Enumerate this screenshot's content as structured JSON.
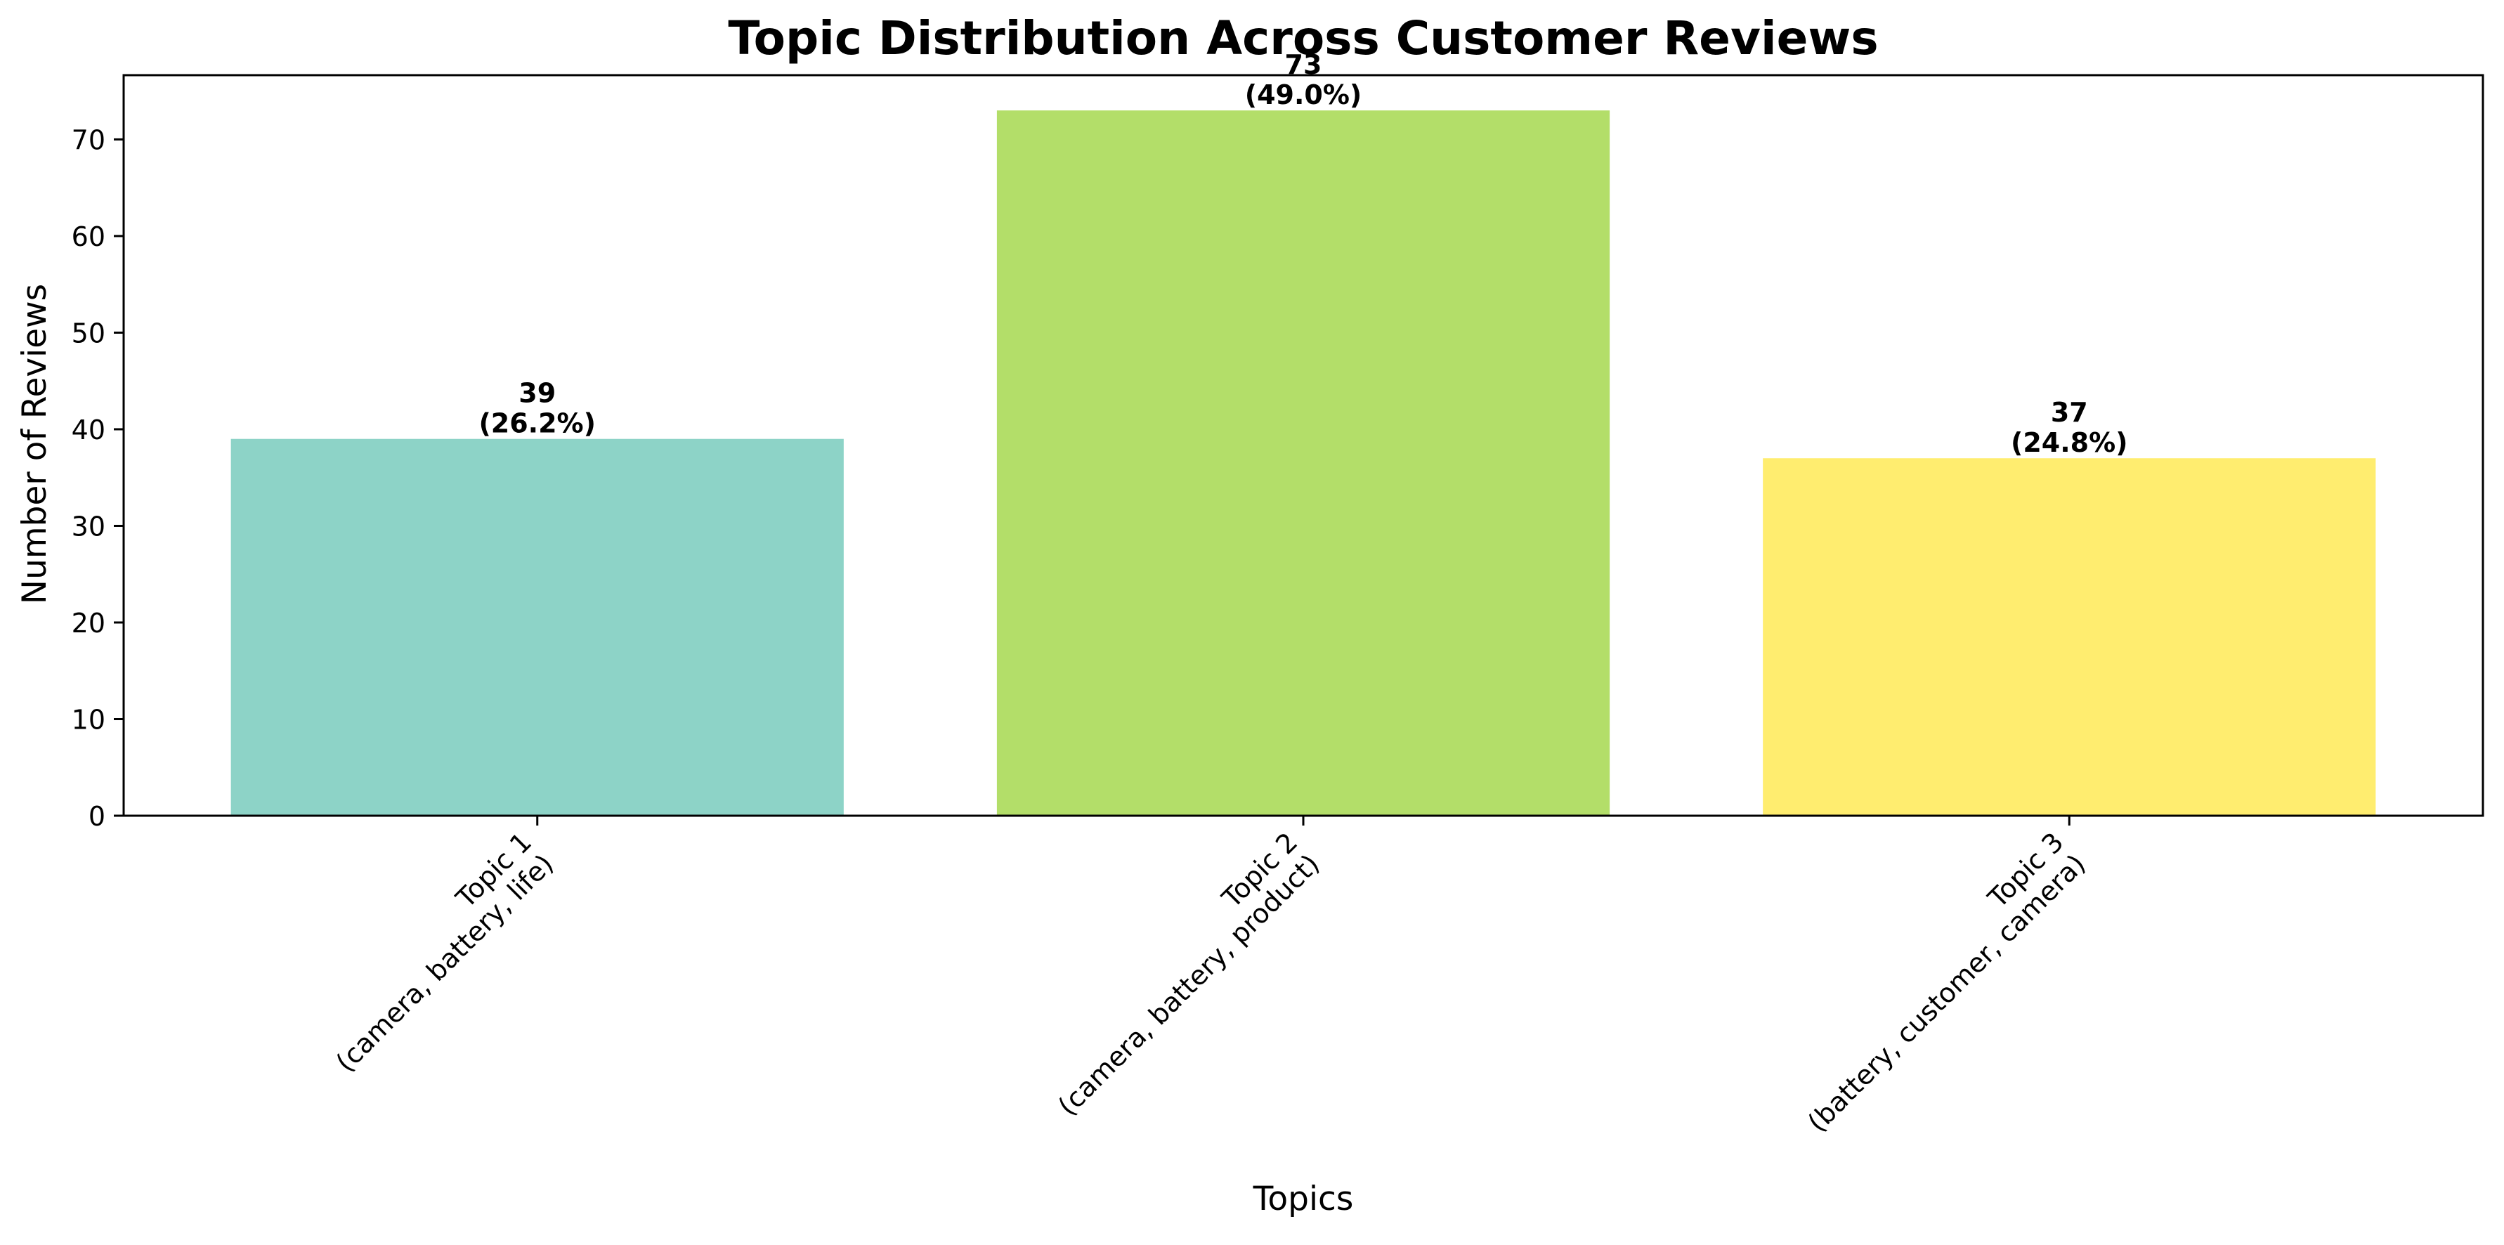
{
  "chart_data": {
    "type": "bar",
    "title": "Topic Distribution Across Customer Reviews",
    "xlabel": "Topics",
    "ylabel": "Number of Reviews",
    "categories": [
      [
        "Topic 1",
        "(camera, battery, life)"
      ],
      [
        "Topic 2",
        "(camera, battery, product)"
      ],
      [
        "Topic 3",
        "(battery, customer, camera)"
      ]
    ],
    "values": [
      39,
      73,
      37
    ],
    "value_labels": [
      [
        "39",
        "(26.2%)"
      ],
      [
        "73",
        "(49.0%)"
      ],
      [
        "37",
        "(24.8%)"
      ]
    ],
    "colors": [
      "#8dd3c7",
      "#b3de69",
      "#ffed6f"
    ],
    "ylim": [
      0,
      76.65
    ],
    "yticks": [
      0,
      10,
      20,
      30,
      40,
      50,
      60,
      70
    ],
    "grid": false,
    "legend": "none"
  }
}
